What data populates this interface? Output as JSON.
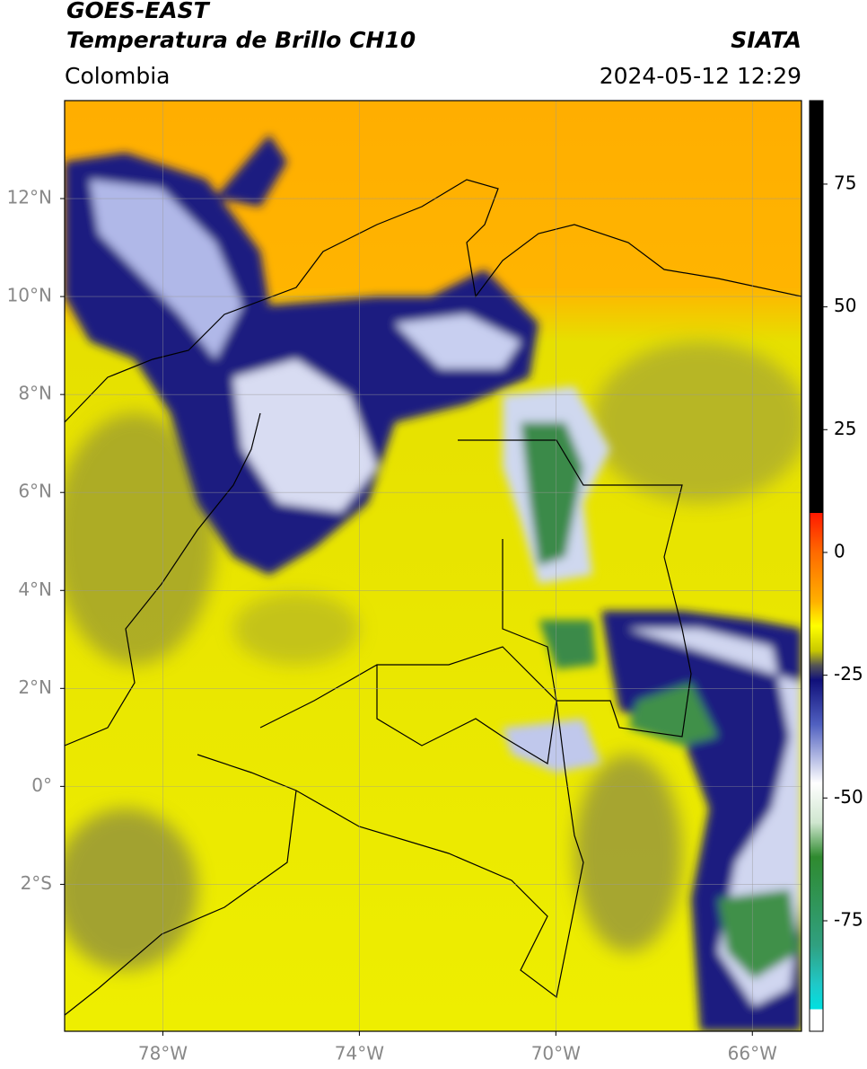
{
  "header": {
    "title": "GOES-EAST",
    "subtitle": "Temperatura de Brillo CH10",
    "region": "Colombia",
    "source": "SIATA",
    "timestamp": "2024-05-12 12:29"
  },
  "map": {
    "lon_range": [
      -80,
      -65
    ],
    "lat_range": [
      -5,
      14
    ],
    "grid": true,
    "lon_ticks": [
      {
        "value": -78,
        "label": "78°W"
      },
      {
        "value": -74,
        "label": "74°W"
      },
      {
        "value": -70,
        "label": "70°W"
      },
      {
        "value": -66,
        "label": "66°W"
      }
    ],
    "lat_ticks": [
      {
        "value": 12,
        "label": "12°N"
      },
      {
        "value": 10,
        "label": "10°N"
      },
      {
        "value": 8,
        "label": "8°N"
      },
      {
        "value": 6,
        "label": "6°N"
      },
      {
        "value": 4,
        "label": "4°N"
      },
      {
        "value": 2,
        "label": "2°N"
      },
      {
        "value": 0,
        "label": "0°"
      },
      {
        "value": -2,
        "label": "2°S"
      }
    ]
  },
  "colorbar": {
    "range": [
      -97.5,
      92
    ],
    "ticks": [
      75,
      50,
      25,
      0,
      -25,
      -50,
      -75
    ],
    "stops": [
      {
        "value": 92,
        "color": "#000000"
      },
      {
        "value": 8,
        "color": "#000000"
      },
      {
        "value": 8,
        "color": "#ff1a00"
      },
      {
        "value": 0,
        "color": "#ff6a00"
      },
      {
        "value": -10,
        "color": "#ffb000"
      },
      {
        "value": -15,
        "color": "#ffff00"
      },
      {
        "value": -20,
        "color": "#c8c800"
      },
      {
        "value": -23,
        "color": "#555555"
      },
      {
        "value": -26,
        "color": "#10107a"
      },
      {
        "value": -35,
        "color": "#5060c0"
      },
      {
        "value": -47,
        "color": "#ffffff"
      },
      {
        "value": -55,
        "color": "#cfe6cf"
      },
      {
        "value": -62,
        "color": "#2f8a2f"
      },
      {
        "value": -80,
        "color": "#30a080"
      },
      {
        "value": -88,
        "color": "#20c8c8"
      },
      {
        "value": -93,
        "color": "#00e0e0"
      },
      {
        "value": -93,
        "color": "#ffffff"
      },
      {
        "value": -97.5,
        "color": "#ffffff"
      }
    ]
  }
}
